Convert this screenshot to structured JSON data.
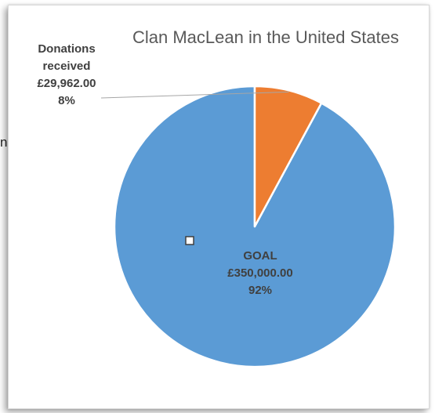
{
  "page": {
    "stray_text": "n"
  },
  "chart_data": {
    "type": "pie",
    "title": "Clan MacLean in the United States",
    "slices": [
      {
        "name": "GOAL",
        "amount": "£350,000.00",
        "percent_label": "92%",
        "value": 350000,
        "label_lines": [
          "GOAL",
          "£350,000.00",
          "92%"
        ],
        "color": "#5b9bd5"
      },
      {
        "name": "Donations received",
        "amount": "£29,962.00",
        "percent_label": "8%",
        "value": 29962,
        "label_lines": [
          "Donations",
          "received",
          "£29,962.00",
          "8%"
        ],
        "color": "#ed7d31"
      }
    ],
    "start_angle_deg": 0,
    "direction": "counterclockwise",
    "slice_border_color": "#ffffff",
    "title_color": "#595959",
    "label_color": "#404040",
    "leader_line_color": "#a6a6a6",
    "legend": "none"
  }
}
